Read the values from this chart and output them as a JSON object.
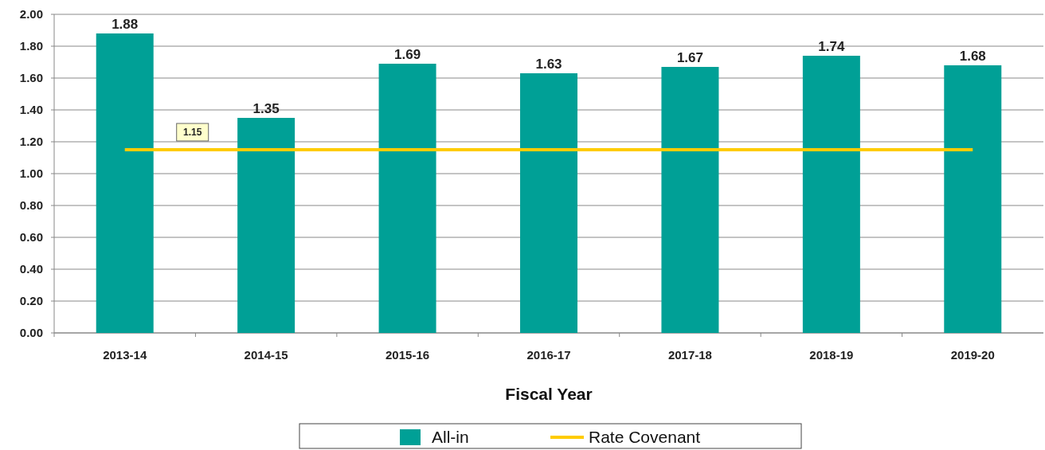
{
  "chart_data": {
    "type": "bar",
    "xlabel": "Fiscal Year",
    "categories": [
      "2013-14",
      "2014-15",
      "2015-16",
      "2016-17",
      "2017-18",
      "2018-19",
      "2019-20"
    ],
    "series": [
      {
        "name": "All-in",
        "color": "#00a096",
        "values": [
          1.88,
          1.35,
          1.69,
          1.63,
          1.67,
          1.74,
          1.68
        ],
        "value_labels": [
          "1.88",
          "1.35",
          "1.69",
          "1.63",
          "1.67",
          "1.74",
          "1.68"
        ]
      },
      {
        "name": "Rate Covenant",
        "type": "line",
        "color": "#ffcc00",
        "values": [
          1.15,
          1.15,
          1.15,
          1.15,
          1.15,
          1.15,
          1.15
        ]
      }
    ],
    "annotations": [
      "1.15"
    ],
    "ylim": [
      0,
      2
    ],
    "yticks": [
      {
        "value": 0,
        "label": "0.00"
      },
      {
        "value": 0.2,
        "label": "0.20"
      },
      {
        "value": 0.4,
        "label": "0.40"
      },
      {
        "value": 0.6,
        "label": "0.60"
      },
      {
        "value": 0.8,
        "label": "0.80"
      },
      {
        "value": 1,
        "label": "1.00"
      },
      {
        "value": 1.2,
        "label": "1.20"
      },
      {
        "value": 1.4,
        "label": "1.40"
      },
      {
        "value": 1.6,
        "label": "1.60"
      },
      {
        "value": 1.8,
        "label": "1.80"
      },
      {
        "value": 2,
        "label": "2.00"
      }
    ],
    "grid": "y",
    "legend": "bottom",
    "marker": "none",
    "line_style": "solid"
  }
}
